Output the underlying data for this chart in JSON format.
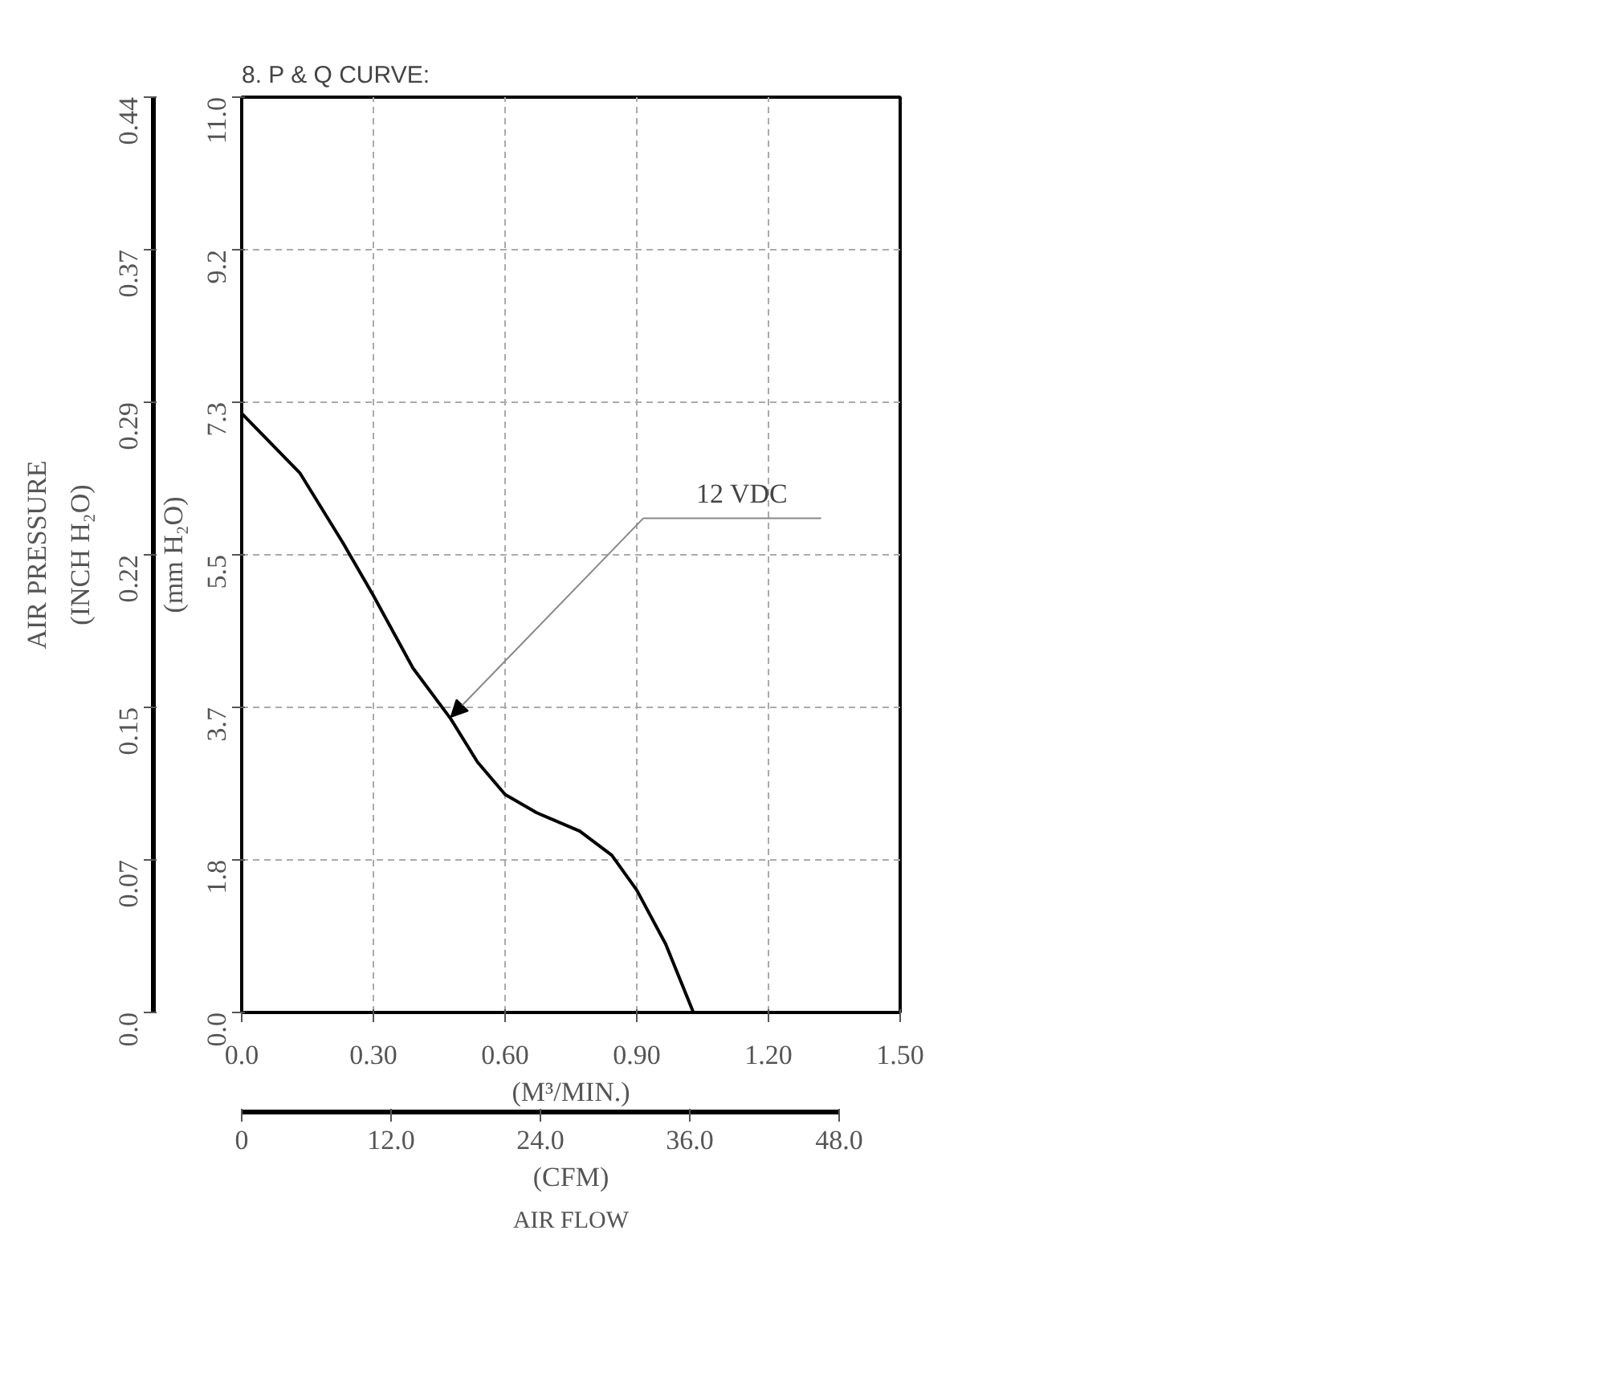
{
  "chart_data": {
    "type": "line",
    "title": "8. P & Q CURVE:",
    "xlabel": "(M³/MIN.)",
    "x2label": "(CFM)",
    "ylabel": "(mm H₂O)",
    "y2label": "(INCH H₂O)",
    "x": [
      0,
      0.133,
      0.23,
      0.3,
      0.39,
      0.476,
      0.537,
      0.6,
      0.672,
      0.77,
      0.843,
      0.9,
      0.966,
      1.029
    ],
    "series": [
      {
        "color": "#000000",
        "values": [
          7.2,
          6.48,
          5.65,
          5.01,
          4.14,
          3.53,
          3.01,
          2.62,
          2.4,
          2.18,
          1.89,
          1.47,
          0.82,
          0
        ]
      }
    ],
    "xlim": [
      0,
      1.5
    ],
    "xticks": [
      {
        "value": 0,
        "label": "0.0"
      },
      {
        "value": 0.3,
        "label": "0.30"
      },
      {
        "value": 0.6,
        "label": "0.60"
      },
      {
        "value": 0.9,
        "label": "0.90"
      },
      {
        "value": 1.2,
        "label": "1.20"
      },
      {
        "value": 1.5,
        "label": "1.50"
      }
    ],
    "x2lim": [
      0,
      52.9
    ],
    "x2ticks": [
      0,
      {
        "value": 12,
        "label": "12.0"
      },
      {
        "value": 24,
        "label": "24.0"
      },
      {
        "value": 36,
        "label": "36.0"
      },
      {
        "value": 48,
        "label": "48.0"
      }
    ],
    "ylim": [
      0,
      11
    ],
    "yticks": [
      {
        "value": 0,
        "label": "0.0"
      },
      {
        "value": 1.833,
        "label": "1.8"
      },
      {
        "value": 3.667,
        "label": "3.7"
      },
      {
        "value": 5.5,
        "label": "5.5"
      },
      {
        "value": 7.333,
        "label": "7.3"
      },
      {
        "value": 9.167,
        "label": "9.2"
      },
      {
        "value": 11,
        "label": "11.0"
      }
    ],
    "y2lim": [
      0,
      0.44
    ],
    "y2ticks": [
      {
        "value": 0,
        "label": "0.0"
      },
      {
        "value": 0.0733,
        "label": "0.07"
      },
      {
        "value": 0.1467,
        "label": "0.15"
      },
      {
        "value": 0.22,
        "label": "0.22"
      },
      {
        "value": 0.2933,
        "label": "0.29"
      },
      {
        "value": 0.3667,
        "label": "0.37"
      },
      {
        "value": 0.44,
        "label": "0.44"
      }
    ],
    "grid": true,
    "annotations": [
      "AIR PRESSURE",
      "AIR FLOW",
      "12 VDC"
    ]
  }
}
